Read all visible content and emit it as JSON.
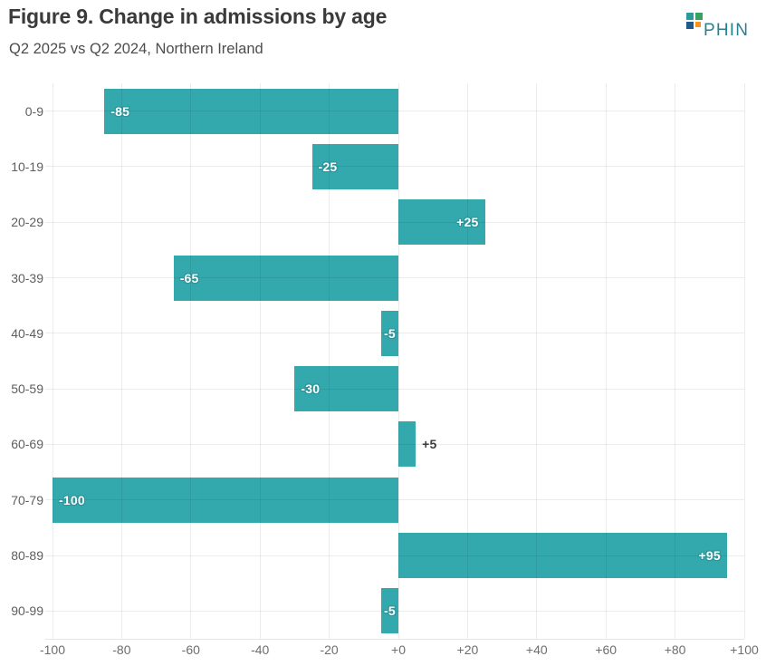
{
  "header": {
    "title": "Figure 9. Change in admissions by age",
    "subtitle": "Q2 2025 vs Q2 2024, Northern Ireland"
  },
  "logo": {
    "text": "PHIN",
    "text_color": "#2c7e91",
    "square_colors": {
      "top_left": "#2a9a9c",
      "top_right": "#35a25f",
      "bottom_left": "#1f5a8c",
      "bottom_right": "#f7941d"
    }
  },
  "chart_data": {
    "type": "bar",
    "orientation": "horizontal",
    "title": "Figure 9. Change in admissions by age",
    "subtitle": "Q2 2025 vs Q2 2024, Northern Ireland",
    "categories": [
      "0-9",
      "10-19",
      "20-29",
      "30-39",
      "40-49",
      "50-59",
      "60-69",
      "70-79",
      "80-89",
      "90-99"
    ],
    "values": [
      -85,
      -25,
      25,
      -65,
      -5,
      -30,
      5,
      -100,
      95,
      -5
    ],
    "value_labels": [
      "-85",
      "-25",
      "+25",
      "-65",
      "-5",
      "-30",
      "+5",
      "-100",
      "+95",
      "-5"
    ],
    "xlim": [
      -100,
      100
    ],
    "x_ticks": [
      {
        "value": -100,
        "label": "-100"
      },
      {
        "value": -80,
        "label": "-80"
      },
      {
        "value": -60,
        "label": "-60"
      },
      {
        "value": -40,
        "label": "-40"
      },
      {
        "value": -20,
        "label": "-20"
      },
      {
        "value": 0,
        "label": "+0"
      },
      {
        "value": 20,
        "label": "+20"
      },
      {
        "value": 40,
        "label": "+40"
      },
      {
        "value": 60,
        "label": "+60"
      },
      {
        "value": 80,
        "label": "+80"
      },
      {
        "value": 100,
        "label": "+100"
      }
    ],
    "grid": true,
    "legend": null,
    "colors": {
      "bar": "#33a9ae",
      "label_inside": "#ffffff",
      "label_halo": "#2c959a",
      "label_outside": "#3c3c3c",
      "category_text": "#5e5e5e",
      "axis_text": "#6e6e6e"
    }
  }
}
